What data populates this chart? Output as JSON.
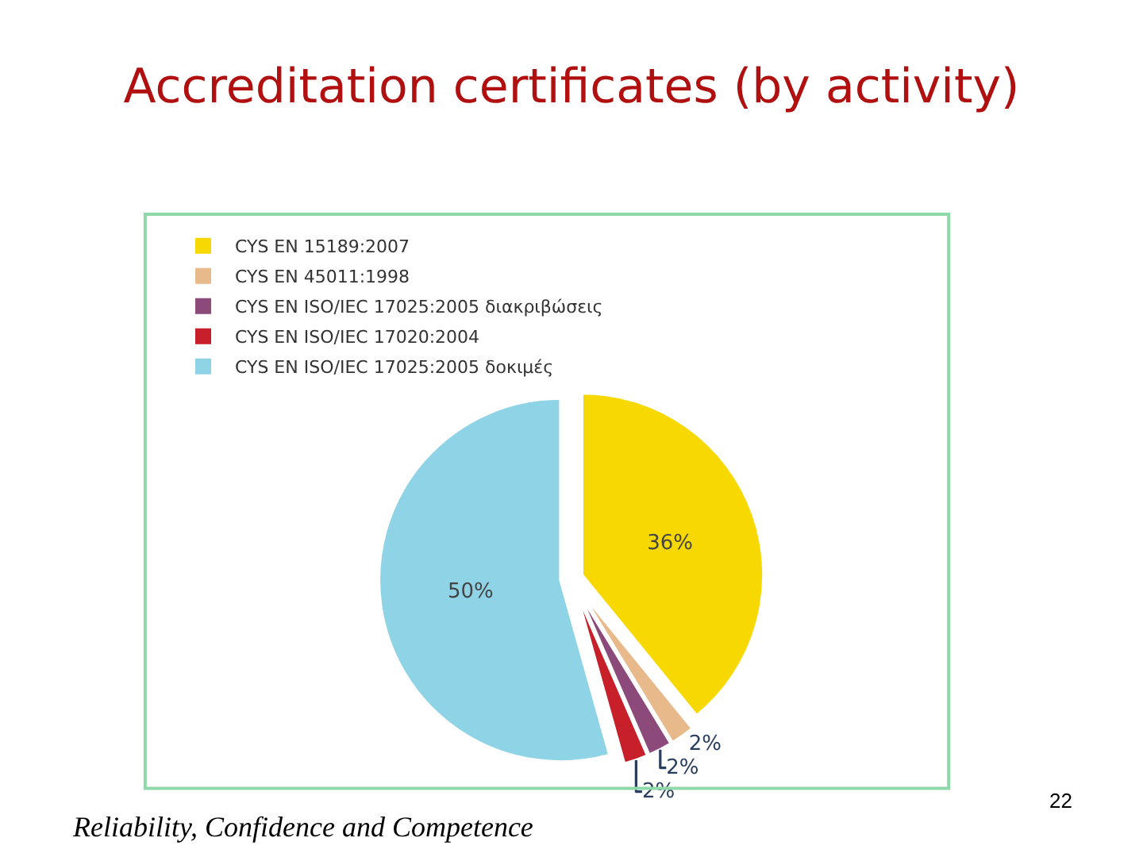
{
  "chart_data": {
    "type": "pie",
    "title": "Accreditation certificates (by activity)",
    "categories": [
      "CYS EN 15189:2007",
      "CYS EN 45011:1998",
      "CYS EN ISO/IEC 17025:2005 διακριβώσεις",
      "CYS EN ISO/IEC 17020:2004",
      "CYS EN ISO/IEC 17025:2005 δοκιμές"
    ],
    "values": [
      36,
      2,
      2,
      2,
      50
    ],
    "value_labels": [
      "36%",
      "2%",
      "2%",
      "2%",
      "50%"
    ],
    "colors": [
      "#f7d800",
      "#e8b98a",
      "#8c4a7a",
      "#c8202a",
      "#8fd3e6"
    ],
    "legend": "top left",
    "annotations": [
      "Reliability, Confidence and Competence",
      "22"
    ]
  }
}
